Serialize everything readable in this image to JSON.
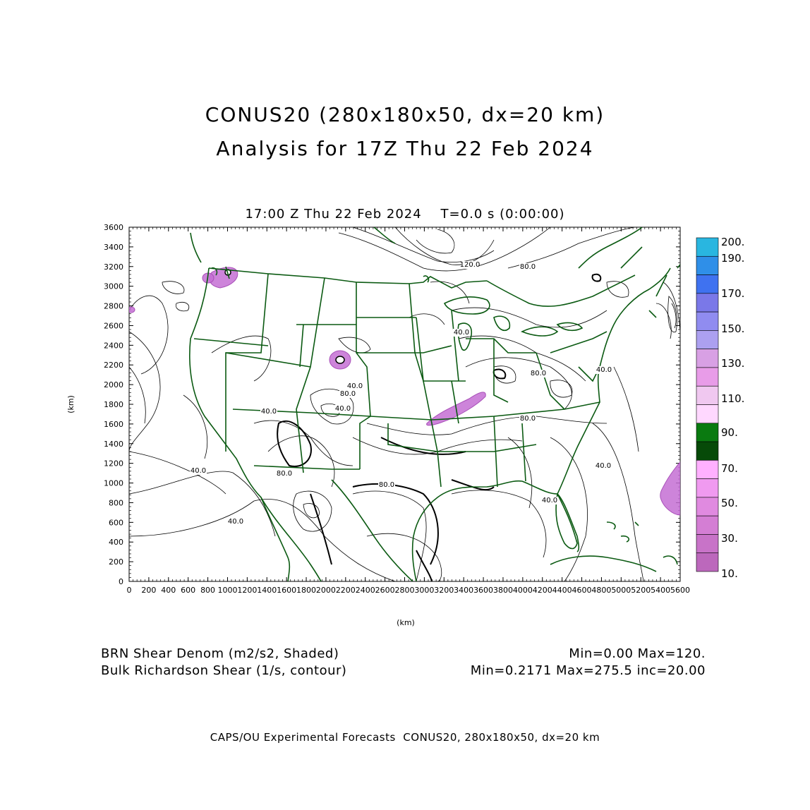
{
  "title": {
    "line1": "CONUS20 (280x180x50, dx=20 km)",
    "line2": "Analysis for 17Z Thu 22 Feb 2024"
  },
  "subtitle": "17:00 Z Thu 22 Feb 2024    T=0.0 s (0:00:00)",
  "axes": {
    "x_label": "(km)",
    "y_label": "(km)",
    "x_ticks": [
      "0",
      "200",
      "400",
      "600",
      "800",
      "1000",
      "1200",
      "1400",
      "1600",
      "1800",
      "2000",
      "2200",
      "2400",
      "2600",
      "2800",
      "3000",
      "3200",
      "3400",
      "3600",
      "3800",
      "4000",
      "4200",
      "4400",
      "4600",
      "4800",
      "5000",
      "5200",
      "5400",
      "5600"
    ],
    "y_ticks": [
      "0",
      "200",
      "400",
      "600",
      "800",
      "1000",
      "1200",
      "1400",
      "1600",
      "1800",
      "2000",
      "2200",
      "2400",
      "2600",
      "2800",
      "3000",
      "3200",
      "3400",
      "3600"
    ],
    "x_range": [
      0,
      5600
    ],
    "y_range": [
      0,
      3600
    ]
  },
  "contour_labels": [
    "120.0",
    "80.0",
    "40.0",
    "40.0",
    "40.0",
    "40.0",
    "80.0",
    "80.0",
    "80.0",
    "40.0",
    "40.0",
    "40.0",
    "40.0",
    "80.0",
    "80.0",
    "40.0"
  ],
  "colorbar": {
    "labels": [
      "200.",
      "190.",
      "170.",
      "150.",
      "130.",
      "110.",
      "90.",
      "70.",
      "50.",
      "30.",
      "10."
    ],
    "colors": [
      "#29b6e0",
      "#2f8fe8",
      "#3f72f0",
      "#7a78e8",
      "#908cf0",
      "#aca0f0",
      "#d8a0e4",
      "#e89ce8",
      "#f0c8f0",
      "#ffd8ff",
      "#0a7a10",
      "#064a08",
      "#ffb0ff",
      "#f09af0",
      "#e08ae0",
      "#d47ed4",
      "#c873c8",
      "#bc68bc"
    ]
  },
  "bottom": {
    "shaded_label": "BRN Shear Denom (m2/s2, Shaded)",
    "contour_label": "Bulk Richardson Shear (1/s, contour)",
    "shaded_range": "Min=0.00 Max=120.",
    "contour_range": "Min=0.2171 Max=275.5 inc=20.00"
  },
  "footer": "CAPS/OU Experimental Forecasts  CONUS20, 280x180x50, dx=20 km",
  "map_colors": {
    "boundary": "#0b5a12",
    "shading": "#c46fd4"
  }
}
